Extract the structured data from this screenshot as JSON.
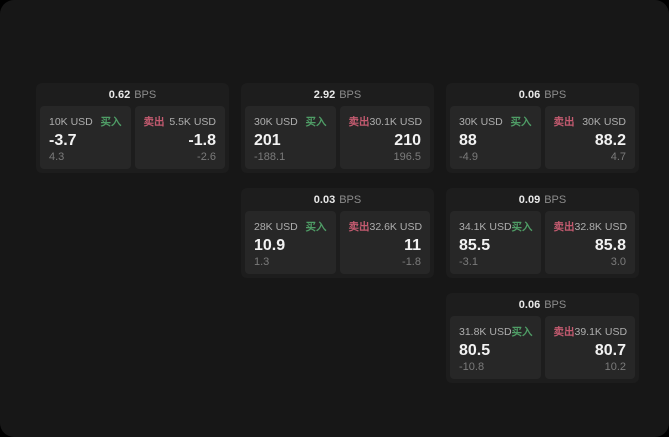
{
  "labels": {
    "bps_unit": "BPS",
    "buy": "买入",
    "sell": "卖出"
  },
  "colors": {
    "buy_green": "#4f9d66",
    "sell_red": "#c45b70",
    "page_bg": "#171717",
    "card_bg": "#1d1d1d",
    "panel_bg": "#272727"
  },
  "cards": [
    {
      "bps": "0.62",
      "buy": {
        "amount": "10K USD",
        "value": "-3.7",
        "sub": "4.3"
      },
      "sell": {
        "amount": "5.5K USD",
        "value": "-1.8",
        "sub": "-2.6"
      }
    },
    {
      "bps": "2.92",
      "buy": {
        "amount": "30K USD",
        "value": "201",
        "sub": "-188.1"
      },
      "sell": {
        "amount": "30.1K USD",
        "value": "210",
        "sub": "196.5"
      }
    },
    {
      "bps": "0.06",
      "buy": {
        "amount": "30K USD",
        "value": "88",
        "sub": "-4.9"
      },
      "sell": {
        "amount": "30K USD",
        "value": "88.2",
        "sub": "4.7"
      }
    },
    {
      "bps": "0.03",
      "buy": {
        "amount": "28K USD",
        "value": "10.9",
        "sub": "1.3"
      },
      "sell": {
        "amount": "32.6K USD",
        "value": "11",
        "sub": "-1.8"
      }
    },
    {
      "bps": "0.09",
      "buy": {
        "amount": "34.1K USD",
        "value": "85.5",
        "sub": "-3.1"
      },
      "sell": {
        "amount": "32.8K USD",
        "value": "85.8",
        "sub": "3.0"
      }
    },
    {
      "bps": "0.06",
      "buy": {
        "amount": "31.8K USD",
        "value": "80.5",
        "sub": "-10.8"
      },
      "sell": {
        "amount": "39.1K USD",
        "value": "80.7",
        "sub": "10.2"
      }
    }
  ]
}
